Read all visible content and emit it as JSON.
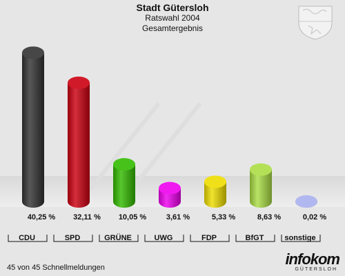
{
  "header": {
    "title": "Stadt Gütersloh",
    "subtitle1": "Ratswahl 2004",
    "subtitle2": "Gesamtergebnis"
  },
  "footer": {
    "status": "45 von 45 Schnellmeldungen",
    "logo": "infokom",
    "logo_sub": "GÜTERSLOH"
  },
  "chart_data": {
    "type": "bar",
    "categories": [
      "CDU",
      "SPD",
      "GRÜNE",
      "UWG",
      "FDP",
      "BfGT",
      "sonstige"
    ],
    "values": [
      40.25,
      32.11,
      10.05,
      3.61,
      5.33,
      8.63,
      0.02
    ],
    "value_labels": [
      "40,25 %",
      "32,11 %",
      "10,05 %",
      "3,61 %",
      "5,33 %",
      "8,63 %",
      "0,02 %"
    ],
    "colors": [
      "#333333",
      "#cc0011",
      "#33bb00",
      "#ee00ee",
      "#eedd00",
      "#aadd44",
      "#a8b0ee"
    ],
    "ylim": [
      0,
      42
    ],
    "title": "",
    "xlabel": "",
    "ylabel": ""
  }
}
